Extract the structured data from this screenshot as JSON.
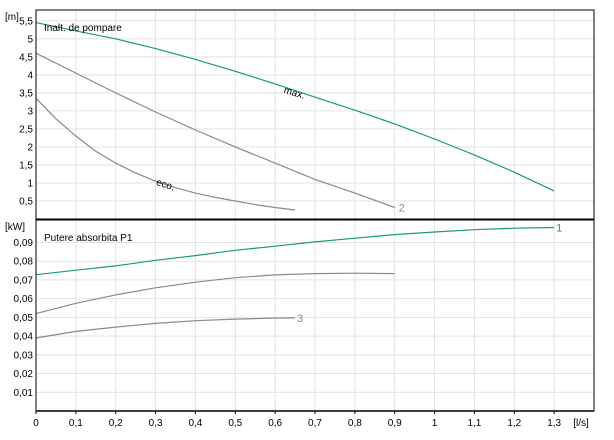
{
  "colors": {
    "max": "#1a9a7a",
    "gray": "#8a8a8a",
    "grid": "#e2e2e2",
    "frame": "#000000"
  },
  "chart_data": [
    {
      "type": "line",
      "title": "Inalt. de pompare",
      "ylabel": "[m]",
      "xlabel": "",
      "xlim": [
        0,
        1.4
      ],
      "ylim": [
        0,
        5.8
      ],
      "yticks": [
        "0,5",
        "1",
        "1,5",
        "2",
        "2,5",
        "3",
        "3,5",
        "4",
        "4,5",
        "5",
        "5,5"
      ],
      "yticks_values": [
        0.5,
        1,
        1.5,
        2,
        2.5,
        3,
        3.5,
        4,
        4.5,
        5,
        5.5
      ],
      "grid": true,
      "series": [
        {
          "x": [
            0,
            0.1,
            0.2,
            0.3,
            0.4,
            0.5,
            0.6,
            0.7,
            0.8,
            0.9,
            1.0,
            1.1,
            1.2,
            1.3
          ],
          "values": [
            5.45,
            5.22,
            5.0,
            4.73,
            4.43,
            4.1,
            3.75,
            3.38,
            3.02,
            2.64,
            2.22,
            1.78,
            1.3,
            0.78
          ],
          "color": "max"
        },
        {
          "x": [
            0,
            0.1,
            0.2,
            0.3,
            0.4,
            0.5,
            0.6,
            0.7,
            0.8,
            0.9
          ],
          "values": [
            4.6,
            4.05,
            3.5,
            2.97,
            2.47,
            2.0,
            1.55,
            1.1,
            0.72,
            0.32
          ],
          "color": "gray"
        },
        {
          "x": [
            0,
            0.05,
            0.1,
            0.15,
            0.2,
            0.25,
            0.3,
            0.35,
            0.4,
            0.45,
            0.5,
            0.55,
            0.6,
            0.65
          ],
          "values": [
            3.35,
            2.78,
            2.3,
            1.88,
            1.55,
            1.28,
            1.05,
            0.87,
            0.72,
            0.6,
            0.5,
            0.4,
            0.32,
            0.25
          ],
          "color": "gray"
        }
      ],
      "annotations": [
        {
          "text": "max.",
          "x": 0.62,
          "y": 3.5,
          "angle": 16
        },
        {
          "text": "eco.",
          "x": 0.3,
          "y": 0.95,
          "angle": 18
        },
        {
          "text": "2",
          "x": 0.91,
          "y": 0.32,
          "color": "gray"
        }
      ]
    },
    {
      "type": "line",
      "title": "Putere absorbita P1",
      "ylabel": "[kW]",
      "xlabel": "[l/s]",
      "xlim": [
        0,
        1.4
      ],
      "ylim": [
        0,
        0.102
      ],
      "xticks": [
        "0",
        "0,1",
        "0,2",
        "0,3",
        "0,4",
        "0,5",
        "0,6",
        "0,7",
        "0,8",
        "0,9",
        "1",
        "1,1",
        "1,2",
        "1,3"
      ],
      "xticks_values": [
        0,
        0.1,
        0.2,
        0.3,
        0.4,
        0.5,
        0.6,
        0.7,
        0.8,
        0.9,
        1.0,
        1.1,
        1.2,
        1.3
      ],
      "yticks": [
        "0,01",
        "0,02",
        "0,03",
        "0,04",
        "0,05",
        "0,06",
        "0,07",
        "0,08",
        "0,09"
      ],
      "yticks_values": [
        0.01,
        0.02,
        0.03,
        0.04,
        0.05,
        0.06,
        0.07,
        0.08,
        0.09
      ],
      "grid": true,
      "series": [
        {
          "x": [
            0,
            0.1,
            0.2,
            0.3,
            0.4,
            0.5,
            0.6,
            0.7,
            0.8,
            0.9,
            1.0,
            1.1,
            1.2,
            1.3
          ],
          "values": [
            0.0728,
            0.0752,
            0.0775,
            0.0805,
            0.083,
            0.0858,
            0.088,
            0.0903,
            0.0923,
            0.0942,
            0.0956,
            0.0968,
            0.0976,
            0.098
          ],
          "color": "max"
        },
        {
          "x": [
            0,
            0.1,
            0.2,
            0.3,
            0.4,
            0.5,
            0.6,
            0.7,
            0.8,
            0.9
          ],
          "values": [
            0.052,
            0.0575,
            0.062,
            0.0658,
            0.0688,
            0.0712,
            0.0727,
            0.0734,
            0.0736,
            0.0734
          ],
          "color": "gray"
        },
        {
          "x": [
            0,
            0.1,
            0.2,
            0.3,
            0.4,
            0.5,
            0.6,
            0.65
          ],
          "values": [
            0.039,
            0.0425,
            0.0448,
            0.0468,
            0.0482,
            0.0491,
            0.0496,
            0.0497
          ],
          "color": "gray"
        }
      ],
      "annotations": [
        {
          "text": "1",
          "x": 1.305,
          "y": 0.098,
          "color": "max"
        },
        {
          "text": "3",
          "x": 0.655,
          "y": 0.0497,
          "color": "gray"
        }
      ]
    }
  ]
}
